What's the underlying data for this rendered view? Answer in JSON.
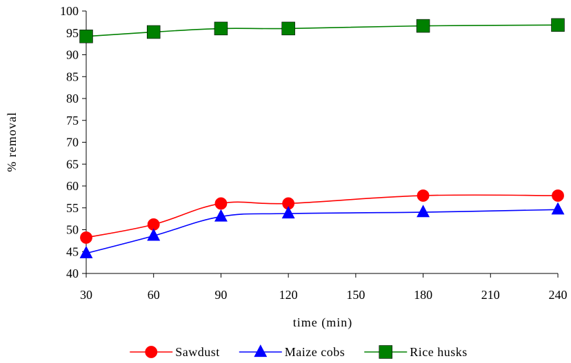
{
  "chart_data": {
    "type": "line",
    "title": "",
    "xlabel": "time (min)",
    "ylabel": "% removal",
    "xlim": [
      30,
      240
    ],
    "ylim": [
      40,
      100
    ],
    "xticks": [
      30,
      60,
      90,
      120,
      150,
      180,
      210,
      240
    ],
    "yticks": [
      40,
      45,
      50,
      55,
      60,
      65,
      70,
      75,
      80,
      85,
      90,
      95,
      100
    ],
    "grid": false,
    "legend_position": "bottom",
    "series": [
      {
        "name": "Sawdust",
        "color": "#ff0000",
        "marker": "circle",
        "x": [
          30,
          60,
          90,
          120,
          180,
          240
        ],
        "y": [
          48.2,
          51.2,
          56.0,
          56.0,
          57.8,
          57.8
        ]
      },
      {
        "name": "Maize cobs",
        "color": "#0000ff",
        "marker": "triangle",
        "x": [
          30,
          60,
          90,
          120,
          180,
          240
        ],
        "y": [
          44.6,
          48.6,
          53.0,
          53.7,
          54.0,
          54.6
        ]
      },
      {
        "name": "Rice husks",
        "color": "#008000",
        "marker": "square",
        "x": [
          30,
          60,
          90,
          120,
          180,
          240
        ],
        "y": [
          94.2,
          95.2,
          96.0,
          96.0,
          96.6,
          96.8
        ]
      }
    ]
  }
}
